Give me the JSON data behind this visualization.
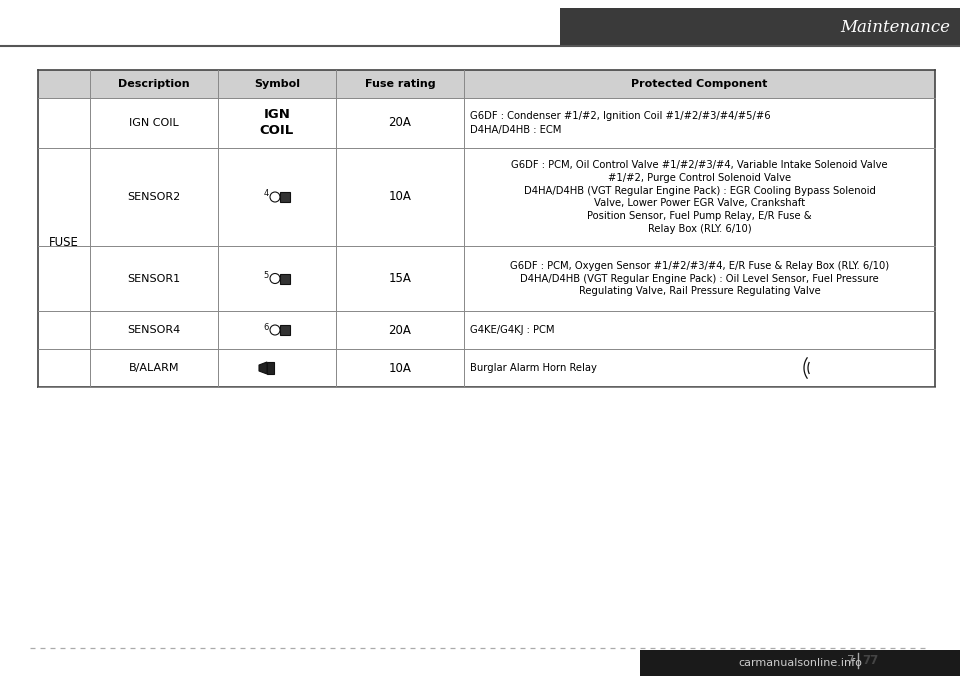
{
  "title": "Maintenance",
  "watermark": "carmanualsonline.info",
  "header_bg": "#3a3a3a",
  "header_text_color": "#ffffff",
  "col_headers": [
    "Description",
    "Symbol",
    "Fuse rating",
    "Protected Component"
  ],
  "left_label": "FUSE",
  "rows": [
    {
      "description": "IGN COIL",
      "symbol_text": "IGN\nCOIL",
      "symbol_bold": true,
      "fuse_rating": "20A",
      "protected": "G6DF : Condenser #1/#2, Ignition Coil #1/#2/#3/#4/#5/#6\nD4HA/D4HB : ECM",
      "protected_align": "left"
    },
    {
      "description": "SENSOR2",
      "symbol_text": "sensor2",
      "symbol_bold": false,
      "fuse_rating": "10A",
      "protected": "G6DF : PCM, Oil Control Valve #1/#2/#3/#4, Variable Intake Solenoid Valve\n#1/#2, Purge Control Solenoid Valve\nD4HA/D4HB (VGT Regular Engine Pack) : EGR Cooling Bypass Solenoid\nValve, Lower Power EGR Valve, Crankshaft\nPosition Sensor, Fuel Pump Relay, E/R Fuse &\nRelay Box (RLY. 6/10)",
      "protected_align": "center"
    },
    {
      "description": "SENSOR1",
      "symbol_text": "sensor1",
      "symbol_bold": false,
      "fuse_rating": "15A",
      "protected": "G6DF : PCM, Oxygen Sensor #1/#2/#3/#4, E/R Fuse & Relay Box (RLY. 6/10)\nD4HA/D4HB (VGT Regular Engine Pack) : Oil Level Sensor, Fuel Pressure\nRegulating Valve, Rail Pressure Regulating Valve",
      "protected_align": "center"
    },
    {
      "description": "SENSOR4",
      "symbol_text": "sensor4",
      "symbol_bold": false,
      "fuse_rating": "20A",
      "protected": "G4KE/G4KJ : PCM",
      "protected_align": "left"
    },
    {
      "description": "B/ALARM",
      "symbol_text": "alarm",
      "symbol_bold": false,
      "fuse_rating": "10A",
      "protected": "Burglar Alarm Horn Relay",
      "protected_align": "left"
    }
  ]
}
